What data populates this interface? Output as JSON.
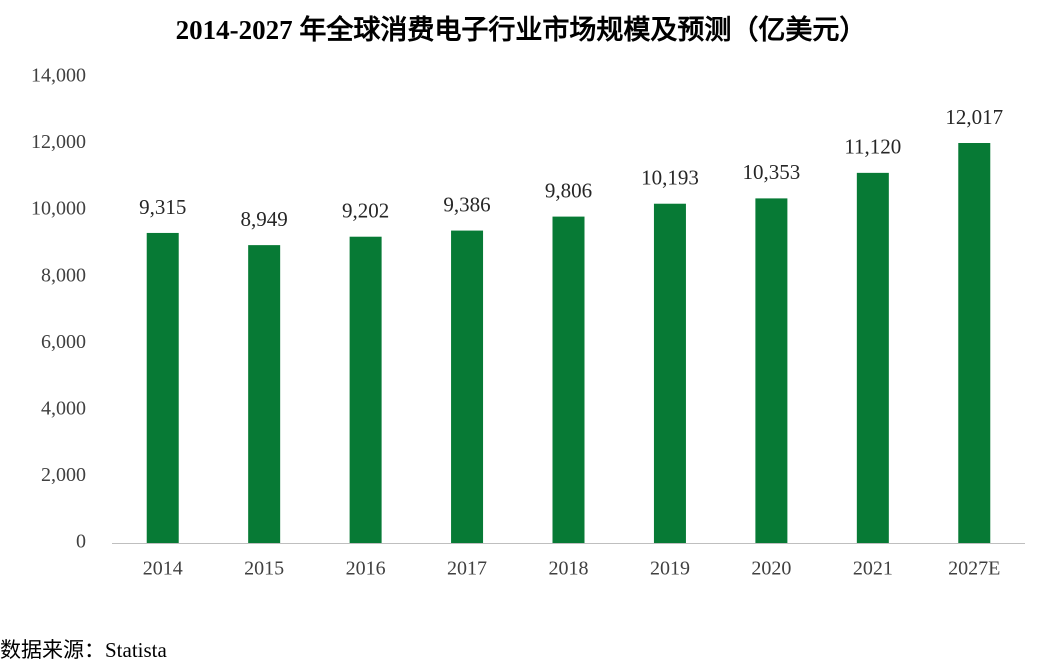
{
  "chart_data": {
    "type": "bar",
    "title": "2014-2027 年全球消费电子行业市场规模及预测（亿美元）",
    "source": "数据来源：Statista",
    "categories": [
      "2014",
      "2015",
      "2016",
      "2017",
      "2018",
      "2019",
      "2020",
      "2021",
      "2027E"
    ],
    "values": [
      9315,
      8949,
      9202,
      9386,
      9806,
      10193,
      10353,
      11120,
      12017
    ],
    "value_labels": [
      "9,315",
      "8,949",
      "9,202",
      "9,386",
      "9,806",
      "10,193",
      "10,353",
      "11,120",
      "12,017"
    ],
    "color": "#077a35",
    "ylim": [
      0,
      14000
    ],
    "yticks": [
      0,
      {
        "value": 2000,
        "label": "2,000"
      },
      {
        "value": 4000,
        "label": "4,000"
      },
      {
        "value": 6000,
        "label": "6,000"
      },
      {
        "value": 8000,
        "label": "8,000"
      },
      {
        "value": 10000,
        "label": "10,000"
      },
      {
        "value": 12000,
        "label": "12,000"
      },
      {
        "value": 14000,
        "label": "14,000"
      }
    ],
    "grid": false
  }
}
